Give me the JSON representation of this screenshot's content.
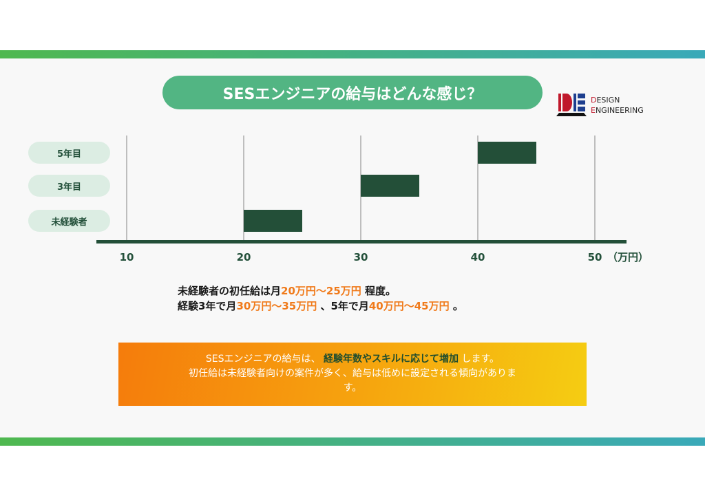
{
  "title": "SESエンジニアの給与はどんな感じ？",
  "logo": {
    "line1_initial": "D",
    "line1_rest": "ESIGN",
    "line2_initial": "E",
    "line2_rest": "NGINEERING"
  },
  "colors": {
    "bar": "#234f38",
    "accent": "#52b583",
    "highlight": "#f07a1a"
  },
  "chart_data": {
    "type": "bar",
    "orientation": "horizontal-floating",
    "categories": [
      "5年目",
      "3年目",
      "未経験者"
    ],
    "ranges": [
      [
        40,
        45
      ],
      [
        30,
        35
      ],
      [
        20,
        25
      ]
    ],
    "xticks": [
      10,
      20,
      30,
      40,
      50
    ],
    "xlim": [
      10,
      50
    ],
    "xunit": "（万円）",
    "grid": true
  },
  "desc": {
    "l1a": "未経験者の初任給は月",
    "l1b": "20万円～25万円",
    "l1c": "程度。",
    "l2a": "経験3年で月",
    "l2b": "30万円～35万円",
    "l2c": "、5年で月",
    "l2d": "40万円～45万円",
    "l2e": "。"
  },
  "summary": {
    "a": "SESエンジニアの給与は、",
    "b": "経験年数やスキルに応じて増加",
    "c": "します。",
    "d": "初任給は未経験者向けの案件が多く、給与は低めに設定される傾向がありま",
    "e": "す。"
  }
}
